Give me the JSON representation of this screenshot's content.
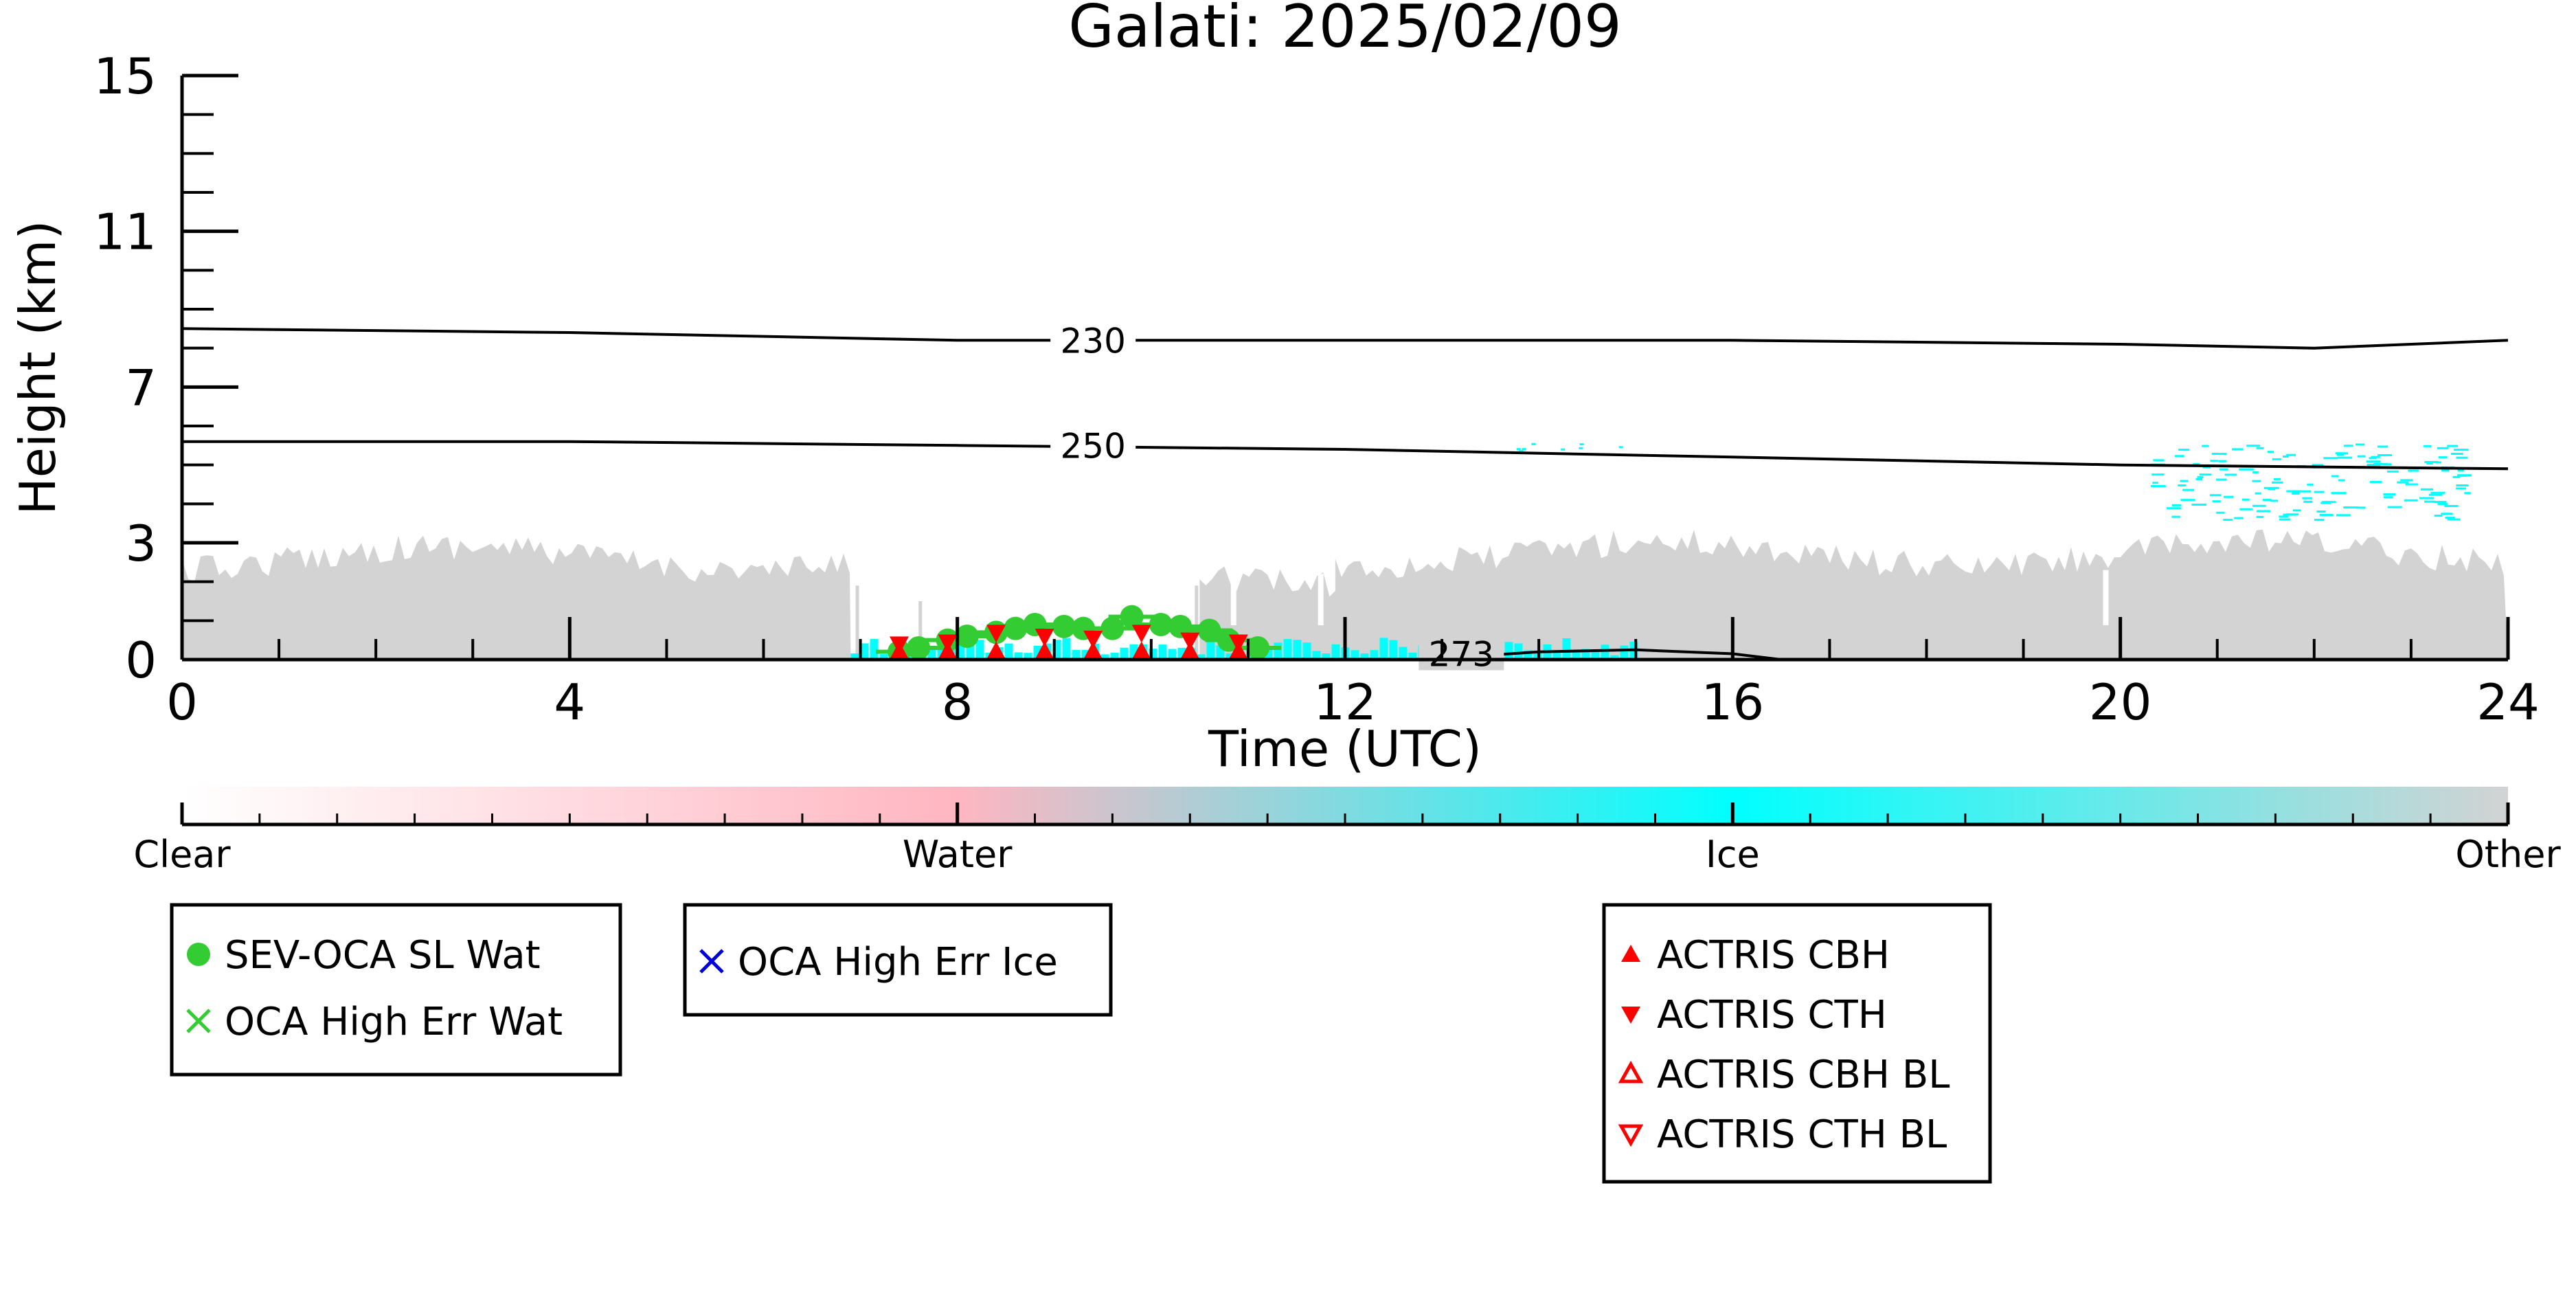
{
  "chart_data": {
    "type": "scatter",
    "title": "Galati: 2025/02/09",
    "xlabel": "Time (UTC)",
    "ylabel": "Height (km)",
    "xlim": [
      0,
      24
    ],
    "ylim": [
      0,
      15
    ],
    "x_ticks": [
      "0",
      "4",
      "8",
      "12",
      "16",
      "20",
      "24"
    ],
    "y_ticks": [
      "0",
      "3",
      "7",
      "11",
      "15"
    ],
    "colorbar": {
      "labels": [
        "Clear",
        "Water",
        "Ice",
        "Other"
      ],
      "colors": [
        "#ffffff",
        "#ffb6c1",
        "#00ffff",
        "#d3d3d3"
      ]
    },
    "background_cloud_mask": {
      "note_free": true,
      "segments": [
        {
          "x_start": 0.0,
          "x_end": 6.9,
          "top": 2.6,
          "class": "Other"
        },
        {
          "x_start": 10.5,
          "x_end": 12.0,
          "top": 2.2,
          "class": "Other"
        },
        {
          "x_start": 11.9,
          "x_end": 24.0,
          "top": 2.7,
          "class": "Other"
        }
      ],
      "ice_patches": [
        {
          "x_start": 6.9,
          "x_end": 15.0,
          "top": 0.5
        },
        {
          "x_start": 20.3,
          "x_end": 23.6,
          "y_low": 3.6,
          "y_high": 5.6
        }
      ]
    },
    "isotherms": [
      {
        "label": "230",
        "x": [
          0,
          4,
          8,
          12,
          16,
          20,
          22,
          24
        ],
        "y": [
          8.5,
          8.4,
          8.2,
          8.2,
          8.2,
          8.1,
          8.0,
          8.2
        ]
      },
      {
        "label": "250",
        "x": [
          0,
          4,
          8,
          12,
          16,
          20,
          24
        ],
        "y": [
          5.6,
          5.6,
          5.5,
          5.4,
          5.2,
          5.0,
          4.9
        ]
      },
      {
        "label": "273",
        "x": [
          12.8,
          14,
          15,
          16,
          16.5
        ],
        "y": [
          0.0,
          0.2,
          0.25,
          0.15,
          0.0
        ]
      }
    ],
    "series": [
      {
        "name": "SEV-OCA SL Wat",
        "marker": "circle",
        "color": "#33cc33",
        "x": [
          7.4,
          7.6,
          7.9,
          8.1,
          8.4,
          8.6,
          8.8,
          9.1,
          9.3,
          9.6,
          9.8,
          10.1,
          10.3,
          10.6,
          10.8,
          11.1
        ],
        "y": [
          0.2,
          0.3,
          0.5,
          0.6,
          0.7,
          0.8,
          0.9,
          0.85,
          0.8,
          0.8,
          1.1,
          0.9,
          0.85,
          0.75,
          0.5,
          0.3
        ]
      },
      {
        "name": "OCA High Err Wat",
        "marker": "x",
        "color": "#33cc33",
        "x": [],
        "y": []
      },
      {
        "name": "OCA High Err Ice",
        "marker": "x",
        "color": "#0000dd",
        "x": [],
        "y": []
      },
      {
        "name": "ACTRIS CBH",
        "marker": "triangle-up",
        "color": "#ff0000",
        "x": [
          7.4,
          7.9,
          8.4,
          8.9,
          9.4,
          9.9,
          10.4,
          10.9
        ],
        "y": [
          0.2,
          0.2,
          0.2,
          0.2,
          0.2,
          0.2,
          0.2,
          0.2
        ]
      },
      {
        "name": "ACTRIS CTH",
        "marker": "triangle-down",
        "color": "#ff0000",
        "x": [
          7.4,
          7.9,
          8.4,
          8.9,
          9.4,
          9.9,
          10.4,
          10.9
        ],
        "y": [
          0.4,
          0.45,
          0.7,
          0.6,
          0.55,
          0.7,
          0.5,
          0.45
        ]
      },
      {
        "name": "ACTRIS CBH BL",
        "marker": "triangle-up-open",
        "color": "#ff0000",
        "x": [],
        "y": []
      },
      {
        "name": "ACTRIS CTH BL",
        "marker": "triangle-down-open",
        "color": "#ff0000",
        "x": [],
        "y": []
      }
    ],
    "legend_boxes": [
      [
        "SEV-OCA SL Wat",
        "OCA High Err Wat"
      ],
      [
        "OCA High Err Ice"
      ],
      [
        "ACTRIS CBH",
        "ACTRIS CTH",
        "ACTRIS CBH BL",
        "ACTRIS CTH BL"
      ]
    ],
    "grid": false
  }
}
